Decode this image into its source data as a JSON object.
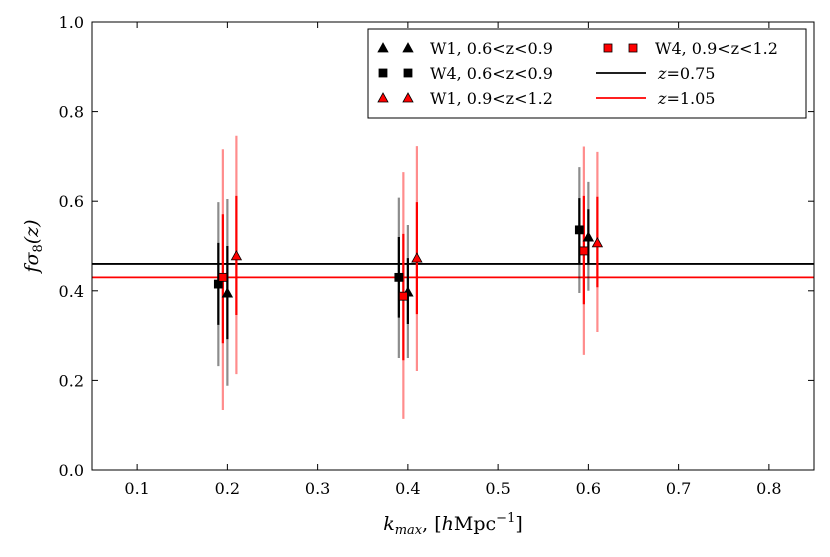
{
  "chart_data": {
    "type": "scatter",
    "title": "",
    "xlabel": "k_max, [hMpc^-1]",
    "xlabel_parts": {
      "k": "k",
      "sub": "max",
      "rest": ", [",
      "h": "h",
      "unit": "Mpc",
      "exp": "−1",
      "close": "]"
    },
    "ylabel": "fσ8(z)",
    "ylabel_parts": {
      "f": "fσ",
      "sub": "8",
      "rest": "(z)"
    },
    "xlim": [
      0.05,
      0.85
    ],
    "ylim": [
      0.0,
      1.0
    ],
    "xticks": [
      "0.1",
      "0.2",
      "0.3",
      "0.4",
      "0.5",
      "0.6",
      "0.7",
      "0.8"
    ],
    "xtick_values": [
      0.1,
      0.2,
      0.3,
      0.4,
      0.5,
      0.6,
      0.7,
      0.8
    ],
    "yticks": [
      "0.0",
      "0.2",
      "0.4",
      "0.6",
      "0.8",
      "1.0"
    ],
    "ytick_values": [
      0.0,
      0.2,
      0.4,
      0.6,
      0.8,
      1.0
    ],
    "grid": false,
    "legend_position": "top-right",
    "series": [
      {
        "name": "W1, 0.6<z<0.9",
        "marker": "triangle",
        "color": "#000000",
        "x": [
          0.2,
          0.4,
          0.6
        ],
        "y": [
          0.395,
          0.397,
          0.52
        ],
        "err1": [
          [
            0.292,
            0.5
          ],
          [
            0.326,
            0.473
          ],
          [
            0.462,
            0.582
          ]
        ],
        "err2": [
          [
            0.188,
            0.605
          ],
          [
            0.25,
            0.547
          ],
          [
            0.4,
            0.643
          ]
        ]
      },
      {
        "name": "W4, 0.6<z<0.9",
        "marker": "square",
        "color": "#000000",
        "x": [
          0.19,
          0.39,
          0.59
        ],
        "y": [
          0.415,
          0.43,
          0.536
        ],
        "err1": [
          [
            0.324,
            0.507
          ],
          [
            0.34,
            0.52
          ],
          [
            0.462,
            0.607
          ]
        ],
        "err2": [
          [
            0.232,
            0.598
          ],
          [
            0.25,
            0.608
          ],
          [
            0.395,
            0.676
          ]
        ]
      },
      {
        "name": "W1, 0.9<z<1.2",
        "marker": "triangle",
        "color": "#ff0000",
        "x": [
          0.21,
          0.41,
          0.61
        ],
        "y": [
          0.478,
          0.473,
          0.507
        ],
        "err1": [
          [
            0.346,
            0.612
          ],
          [
            0.348,
            0.598
          ],
          [
            0.408,
            0.61
          ]
        ],
        "err2": [
          [
            0.214,
            0.746
          ],
          [
            0.221,
            0.723
          ],
          [
            0.308,
            0.71
          ]
        ]
      },
      {
        "name": "W4, 0.9<z<1.2",
        "marker": "square",
        "color": "#ff0000",
        "x": [
          0.195,
          0.395,
          0.595
        ],
        "y": [
          0.43,
          0.388,
          0.489
        ],
        "err1": [
          [
            0.283,
            0.571
          ],
          [
            0.245,
            0.527
          ],
          [
            0.37,
            0.612
          ]
        ],
        "err2": [
          [
            0.134,
            0.716
          ],
          [
            0.114,
            0.665
          ],
          [
            0.257,
            0.722
          ]
        ]
      }
    ],
    "hlines": [
      {
        "name": "z=0.75",
        "label_z": "z",
        "label_val": "=0.75",
        "y": 0.46,
        "color": "#000000"
      },
      {
        "name": "z=1.05",
        "label_z": "z",
        "label_val": "=1.05",
        "y": 0.43,
        "color": "#ff0000"
      }
    ]
  }
}
